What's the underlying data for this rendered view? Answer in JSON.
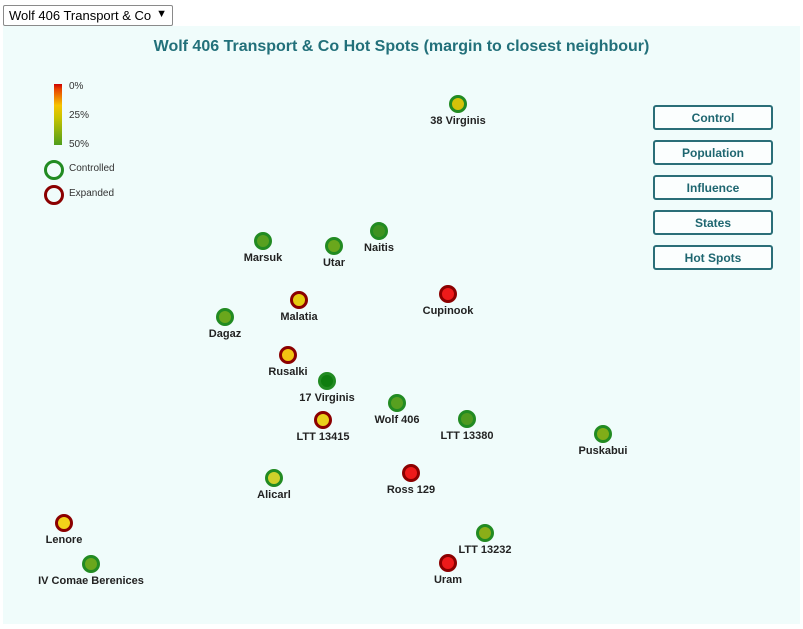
{
  "faction_selector": {
    "value": "Wolf 406 Transport & Co"
  },
  "title": "Wolf 406 Transport & Co Hot Spots (margin to closest neighbour)",
  "legend": {
    "ticks": [
      "0%",
      "25%",
      "50%"
    ],
    "controlled_label": "Controlled",
    "expanded_label": "Expanded",
    "controlled_color": "#228b22",
    "expanded_color": "#8b0000"
  },
  "buttons": [
    "Control",
    "Population",
    "Influence",
    "States",
    "Hot Spots"
  ],
  "colors": {
    "controlled_ring": "#228b22",
    "expanded_ring": "#8b0000",
    "accent": "#22707a",
    "panel_bg": "#f0fcfb"
  },
  "systems": [
    {
      "name": "38 Virginis",
      "status": "controlled",
      "fill": "#d4c20a"
    },
    {
      "name": "Marsuk",
      "status": "controlled",
      "fill": "#58a020"
    },
    {
      "name": "Utar",
      "status": "controlled",
      "fill": "#6aa71c"
    },
    {
      "name": "Naitis",
      "status": "controlled",
      "fill": "#3f9220"
    },
    {
      "name": "Malatia",
      "status": "expanded",
      "fill": "#e5cc10"
    },
    {
      "name": "Cupinook",
      "status": "expanded",
      "fill": "#ee1a1a"
    },
    {
      "name": "Dagaz",
      "status": "controlled",
      "fill": "#6aa71c"
    },
    {
      "name": "Rusalki",
      "status": "expanded",
      "fill": "#f2c412"
    },
    {
      "name": "17 Virginis",
      "status": "controlled",
      "fill": "#0f7d0f"
    },
    {
      "name": "Wolf 406",
      "status": "controlled",
      "fill": "#58a020"
    },
    {
      "name": "LTT 13415",
      "status": "expanded",
      "fill": "#ead01a"
    },
    {
      "name": "LTT 13380",
      "status": "controlled",
      "fill": "#4f9a20"
    },
    {
      "name": "Puskabui",
      "status": "controlled",
      "fill": "#80ad18"
    },
    {
      "name": "Alicarl",
      "status": "controlled",
      "fill": "#cfd12a"
    },
    {
      "name": "Ross 129",
      "status": "expanded",
      "fill": "#ee1a1a"
    },
    {
      "name": "Lenore",
      "status": "expanded",
      "fill": "#f2d21a"
    },
    {
      "name": "LTT 13232",
      "status": "controlled",
      "fill": "#8aae18"
    },
    {
      "name": "IV Comae Berenices",
      "status": "controlled",
      "fill": "#6aa71c"
    },
    {
      "name": "Uram",
      "status": "expanded",
      "fill": "#ee1a1a"
    }
  ]
}
